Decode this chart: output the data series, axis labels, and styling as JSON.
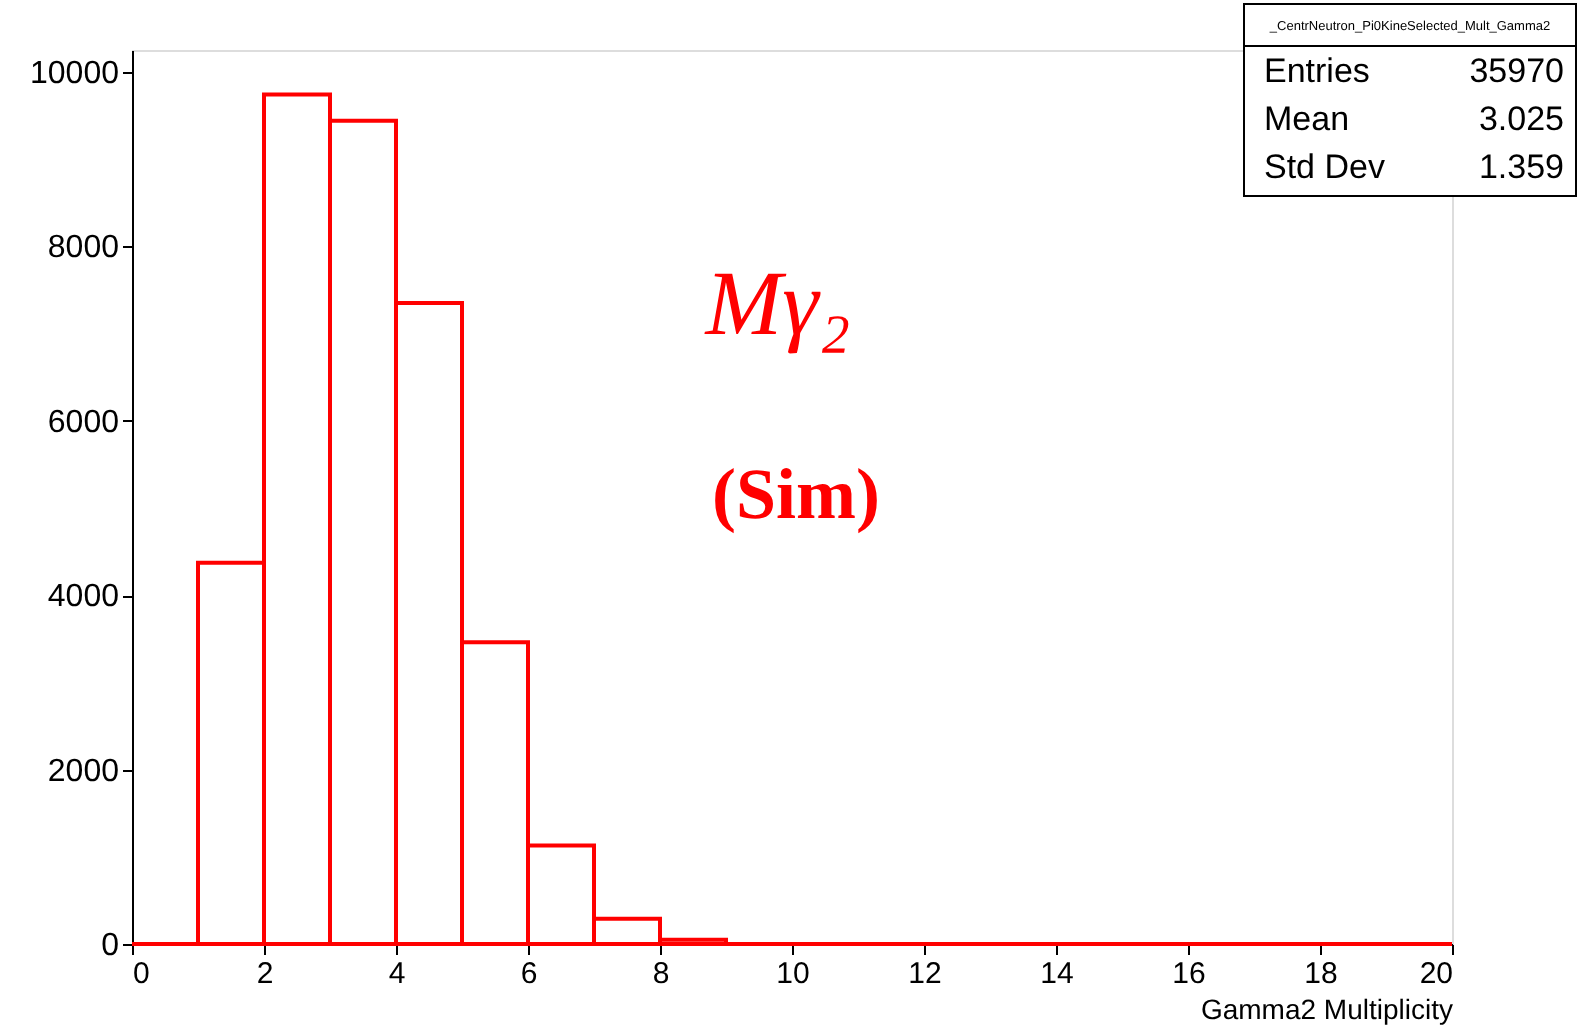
{
  "chart_data": {
    "type": "histogram",
    "xlabel": "Gamma2 Multiplicity",
    "bins": [
      0,
      1,
      2,
      3,
      4,
      5,
      6,
      7,
      8,
      9,
      10,
      11,
      12,
      13,
      14,
      15,
      16,
      17,
      18,
      19,
      20
    ],
    "values": [
      0,
      4370,
      9740,
      9440,
      7350,
      3460,
      1130,
      290,
      50,
      0,
      0,
      0,
      0,
      0,
      0,
      0,
      0,
      0,
      0,
      0
    ],
    "color": "#ff0000",
    "xlim": [
      0,
      20
    ],
    "xticks": [
      0,
      2,
      4,
      6,
      8,
      10,
      12,
      14,
      16,
      18,
      20
    ],
    "ylim": [
      0,
      10250
    ],
    "yticks": [
      0,
      2000,
      4000,
      6000,
      8000,
      10000
    ],
    "grid": false,
    "annotations": [
      "_CentrNeutron_Pi0KineSelected_Mult_Gamma2",
      "Entries 35970",
      "Mean 3.025",
      "Std Dev 1.359",
      "Mγ₂",
      "(Sim)"
    ]
  }
}
